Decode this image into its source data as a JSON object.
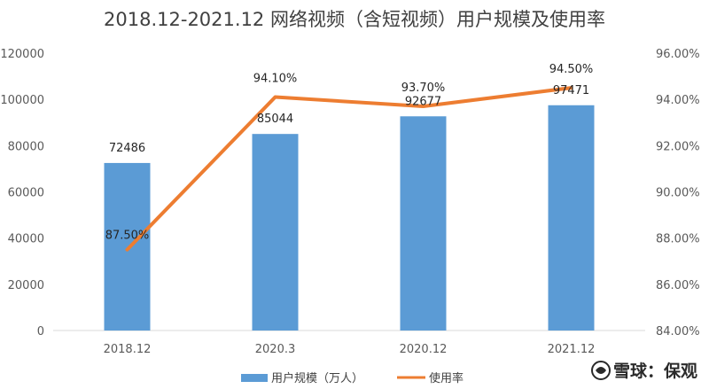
{
  "chart_data": {
    "type": "bar",
    "title": "2018.12-2021.12 网络视频（含短视频）用户规模及使用率",
    "categories": [
      "2018.12",
      "2020.3",
      "2020.12",
      "2021.12"
    ],
    "series": [
      {
        "name": "用户规模（万人）",
        "type": "bar",
        "axis": "left",
        "values": [
          72486,
          85044,
          92677,
          97471
        ],
        "labels": [
          "72486",
          "85044",
          "92677",
          "97471"
        ],
        "color": "#5b9bd5"
      },
      {
        "name": "使用率",
        "type": "line",
        "axis": "right",
        "values": [
          87.5,
          94.1,
          93.7,
          94.5
        ],
        "labels": [
          "87.50%",
          "94.10%",
          "93.70%",
          "94.50%"
        ],
        "color": "#ed7d31"
      }
    ],
    "y_left": {
      "min": 0,
      "max": 120000,
      "ticks": [
        0,
        20000,
        40000,
        60000,
        80000,
        100000,
        120000
      ],
      "tick_labels": [
        "0",
        "20000",
        "40000",
        "60000",
        "80000",
        "100000",
        "120000"
      ]
    },
    "y_right": {
      "min": 84,
      "max": 96,
      "ticks": [
        84,
        86,
        88,
        90,
        92,
        94,
        96
      ],
      "tick_labels": [
        "84.00%",
        "86.00%",
        "88.00%",
        "90.00%",
        "92.00%",
        "94.00%",
        "96.00%"
      ]
    },
    "grid": false,
    "legend_position": "bottom"
  },
  "watermark": {
    "text": "雪球：保观",
    "icon": "xueqiu-snowball-icon"
  }
}
